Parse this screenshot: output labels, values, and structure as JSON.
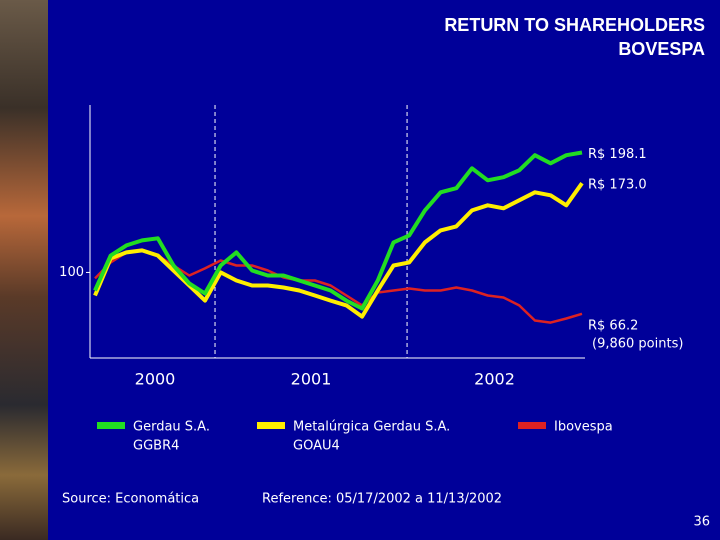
{
  "title_lines": [
    "RETURN TO SHAREHOLDERS",
    "BOVESPA"
  ],
  "source": "Source: Economática",
  "reference": "Reference: 05/17/2002 a 11/13/2002",
  "page_number": "36",
  "chart_data": {
    "type": "line",
    "xlim": [
      2000.375,
      2002.911
    ],
    "year_breaks": [
      2001,
      2002
    ],
    "year_labels": [
      "2000",
      "2001",
      "2002"
    ],
    "ylim": [
      30,
      237
    ],
    "yticks": [
      100
    ],
    "series": [
      {
        "name": "Gerdau S.A.",
        "ticker": "GGBR4",
        "color": "#22dd22",
        "end_label": "R$ 198.1",
        "values": [
          85.2,
          113.9,
          122.1,
          126.2,
          127.9,
          105.7,
          91.0,
          82.8,
          105.7,
          116.4,
          101.6,
          97.5,
          97.5,
          93.4,
          89.3,
          85.2,
          77.0,
          70.5,
          93.4,
          124.6,
          130.3,
          150.8,
          165.6,
          168.9,
          185.2,
          175.4,
          177.9,
          183.6,
          195.9,
          189.3,
          195.9,
          198.1
        ]
      },
      {
        "name": "Metalúrgica Gerdau S.A.",
        "ticker": "GOAU4",
        "color": "#ffee00",
        "end_label": "R$ 173.0",
        "values": [
          81.1,
          111.5,
          116.4,
          118.0,
          113.9,
          101.6,
          89.3,
          77.0,
          100,
          93.4,
          89.3,
          89.3,
          87.7,
          85.2,
          81.1,
          77.0,
          73.0,
          63.9,
          85.2,
          105.7,
          108.2,
          124.6,
          134.4,
          137.7,
          150.8,
          154.9,
          152.5,
          159.0,
          165.6,
          163.1,
          154.9,
          173.0
        ]
      },
      {
        "name": "Ibovespa",
        "color": "#dd2222",
        "end_label": "R$ 66.2",
        "end_note": "(9,860 points)",
        "values": [
          95.1,
          108.2,
          116.4,
          118.0,
          113.9,
          105.7,
          97.5,
          103.3,
          109.8,
          105.7,
          105.7,
          101.6,
          95.9,
          93.4,
          93.4,
          89.3,
          81.1,
          73.0,
          83.6,
          85.2,
          86.9,
          85.2,
          85.2,
          87.7,
          85.2,
          81.1,
          79.5,
          73.0,
          60.7,
          59.0,
          62.3,
          66.2
        ]
      }
    ]
  }
}
